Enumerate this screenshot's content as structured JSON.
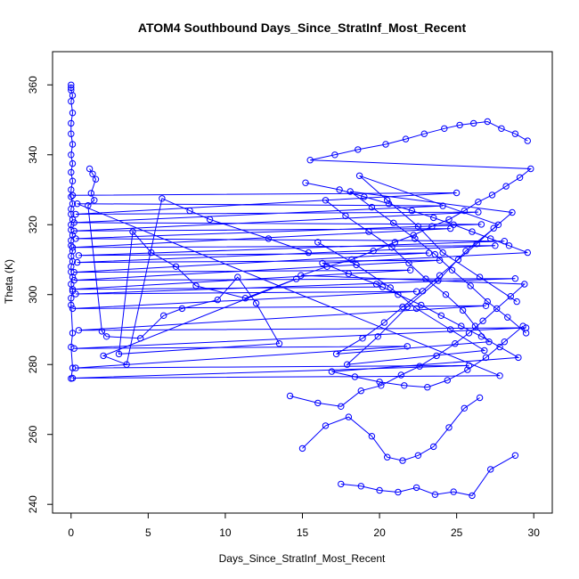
{
  "chart_data": {
    "type": "line",
    "title": "ATOM4 Southbound Days_Since_StratInf_Most_Recent",
    "xlabel": "Days_Since_StratInf_Most_Recent",
    "ylabel": "Theta (K)",
    "xlim": [
      -1.2,
      31.2
    ],
    "ylim": [
      237.5,
      369.5
    ],
    "xticks": [
      0,
      5,
      10,
      15,
      20,
      25,
      30
    ],
    "yticks": [
      240,
      260,
      280,
      300,
      320,
      340,
      360
    ],
    "series_color": "#0000ff",
    "marker": "open-circle",
    "grid": false,
    "legend": "none",
    "series": [
      {
        "x": [
          0.0,
          0.0,
          0.0,
          0.1,
          0.0,
          0.1,
          0.0,
          0.0,
          0.1,
          0.0,
          0.1,
          0.0,
          0.1,
          0.0,
          0.0,
          0.1,
          0.0,
          0.0,
          0.1,
          0.0,
          0.0,
          0.1,
          0.0,
          0.0,
          0.1,
          0.0,
          0.1,
          0.0,
          0.0,
          0.1,
          0.0,
          0.1,
          0.0,
          0.0,
          0.1,
          0.0,
          0.1,
          0.0
        ],
        "y": [
          360.0,
          359.2,
          358.5,
          357.0,
          355.3,
          352.0,
          349.0,
          346.0,
          343.0,
          340.0,
          337.5,
          335.0,
          332.5,
          330.0,
          328.0,
          326.0,
          324.5,
          323.0,
          321.5,
          320.0,
          318.5,
          317.0,
          315.5,
          314.0,
          312.5,
          311.0,
          309.5,
          308.0,
          306.5,
          305.0,
          303.0,
          301.0,
          299.0,
          297.0,
          289.0,
          285.0,
          279.0,
          276.0
        ]
      },
      {
        "x": [
          0.1,
          25.0,
          0.3,
          26.4,
          0.2,
          24.6,
          0.1,
          27.5,
          0.4,
          23.9,
          0.2,
          28.8,
          0.3,
          22.4,
          0.1,
          26.9,
          0.5,
          29.5,
          0.2,
          21.8,
          0.3,
          25.8,
          0.1,
          27.8,
          0.4,
          24.1,
          0.2,
          26.6,
          0.3,
          28.1,
          0.5,
          23.2,
          0.2,
          22.0,
          0.1,
          20.2
        ],
        "y": [
          328.4,
          329.1,
          323.0,
          323.6,
          318.2,
          318.9,
          313.5,
          314.0,
          309.2,
          309.8,
          304.1,
          304.6,
          300.2,
          300.9,
          296.0,
          296.8,
          289.8,
          290.5,
          284.6,
          285.2,
          279.0,
          279.7,
          276.1,
          276.8,
          326.0,
          325.4,
          320.6,
          320.1,
          316.0,
          315.3,
          311.2,
          311.9,
          306.4,
          307.0,
          301.5,
          302.2
        ]
      },
      {
        "x": [
          1.2,
          1.4,
          1.6,
          1.3,
          1.5,
          1.1,
          2.0,
          2.3,
          4.5,
          6.0,
          7.2,
          9.5,
          10.8,
          12.0,
          13.5,
          3.1,
          4.0,
          5.2,
          6.8,
          8.1,
          11.3,
          14.6,
          2.1,
          3.6,
          5.9,
          7.7,
          9.0,
          12.8,
          15.4
        ],
        "y": [
          336.0,
          334.5,
          333.0,
          329.0,
          327.0,
          325.5,
          289.5,
          288.0,
          287.5,
          294.0,
          296.0,
          298.5,
          305.0,
          297.5,
          286.0,
          283.0,
          318.0,
          312.0,
          308.0,
          302.5,
          299.0,
          304.5,
          282.5,
          280.0,
          327.5,
          324.0,
          321.5,
          316.0,
          312.0
        ]
      },
      {
        "x": [
          14.2,
          16.0,
          17.5,
          18.8,
          20.1,
          21.4,
          22.6,
          23.7,
          24.9,
          25.8,
          26.7,
          27.6,
          28.5,
          29.4,
          14.9,
          16.6,
          18.2,
          19.6,
          21.0,
          22.2,
          23.4,
          24.5,
          25.5,
          26.4,
          27.3,
          28.2,
          29.1,
          29.8,
          15.5,
          17.1,
          18.6,
          20.4,
          21.7,
          22.9,
          24.2,
          25.2,
          26.1,
          27.0,
          27.9,
          28.8,
          29.6
        ],
        "y": [
          271.0,
          269.0,
          268.0,
          272.5,
          274.0,
          277.0,
          279.5,
          282.5,
          286.0,
          289.0,
          292.5,
          296.0,
          299.5,
          303.0,
          305.5,
          308.0,
          310.0,
          312.5,
          315.0,
          317.0,
          319.5,
          321.5,
          324.0,
          326.5,
          328.5,
          331.0,
          333.5,
          336.0,
          338.5,
          340.0,
          341.5,
          343.0,
          344.5,
          346.0,
          347.5,
          348.5,
          349.0,
          349.5,
          347.5,
          346.0,
          344.0
        ]
      },
      {
        "x": [
          15.2,
          17.4,
          19.0,
          20.6,
          22.1,
          23.5,
          24.8,
          26.0,
          27.2,
          28.4,
          29.6,
          16.3,
          18.0,
          19.8,
          21.2,
          22.7,
          24.0,
          25.3,
          26.6,
          27.8,
          29.0,
          16.9,
          18.4,
          20.0,
          21.6,
          23.1,
          24.4,
          25.7,
          26.9,
          28.1,
          29.3
        ],
        "y": [
          332.0,
          330.0,
          328.0,
          326.0,
          324.0,
          322.0,
          320.0,
          318.0,
          316.0,
          314.0,
          312.0,
          309.0,
          306.0,
          303.0,
          300.0,
          297.0,
          294.0,
          291.0,
          288.0,
          285.0,
          282.0,
          278.0,
          276.5,
          275.0,
          274.0,
          273.5,
          275.5,
          278.5,
          282.0,
          286.5,
          291.0
        ]
      },
      {
        "x": [
          16.5,
          17.8,
          19.3,
          20.8,
          21.9,
          23.0,
          24.3,
          25.4,
          26.2,
          27.1,
          17.2,
          18.9,
          20.3,
          21.5,
          22.8,
          23.9,
          25.1,
          26.3,
          27.4,
          28.6,
          18.1,
          19.5,
          20.9,
          22.3,
          23.6,
          24.7,
          25.9,
          27.0,
          28.3,
          29.5
        ],
        "y": [
          327.0,
          322.5,
          318.0,
          313.5,
          309.0,
          304.5,
          300.0,
          295.5,
          291.0,
          286.5,
          283.0,
          287.5,
          292.0,
          296.5,
          301.0,
          305.5,
          310.0,
          314.5,
          319.0,
          323.5,
          329.5,
          325.0,
          320.5,
          316.0,
          311.5,
          307.0,
          302.5,
          298.0,
          293.5,
          289.0
        ]
      },
      {
        "x": [
          16.0,
          18.5,
          20.7,
          22.4,
          24.6,
          26.8,
          17.9,
          19.9,
          21.8,
          23.8,
          25.6,
          27.7,
          18.7,
          20.5,
          22.5,
          24.1,
          26.5,
          28.9
        ],
        "y": [
          315.0,
          308.5,
          302.0,
          296.0,
          290.0,
          284.0,
          280.0,
          288.0,
          296.5,
          304.0,
          312.5,
          320.0,
          334.0,
          327.0,
          319.5,
          312.0,
          305.0,
          298.0
        ]
      },
      {
        "x": [
          15.0,
          16.5,
          18.0,
          19.5,
          20.5,
          21.5,
          22.5,
          23.5,
          24.5,
          25.5,
          26.5
        ],
        "y": [
          256.0,
          262.5,
          265.0,
          259.5,
          253.5,
          252.5,
          254.0,
          256.5,
          262.0,
          267.5,
          270.5
        ]
      },
      {
        "x": [
          17.5,
          18.8,
          20.0,
          21.2,
          22.4,
          23.6,
          24.8,
          26.0,
          27.2,
          28.8
        ],
        "y": [
          245.8,
          245.2,
          244.0,
          243.5,
          244.8,
          242.8,
          243.6,
          242.5,
          250.0,
          254.0
        ]
      }
    ]
  }
}
